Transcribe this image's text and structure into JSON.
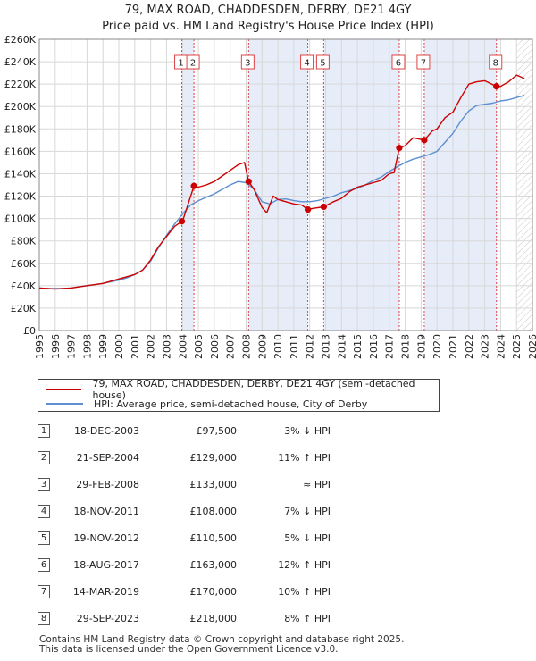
{
  "title_line1": "79, MAX ROAD, CHADDESDEN, DERBY, DE21 4GY",
  "title_line2": "Price paid vs. HM Land Registry's House Price Index (HPI)",
  "colors": {
    "property": "#cc0000",
    "hpi": "#5b8fd0",
    "shade": "#e6ecf8",
    "grid": "#d8d8d8"
  },
  "legend": {
    "property_label": "79, MAX ROAD, CHADDESDEN, DERBY, DE21 4GY (semi-detached house)",
    "hpi_label": "HPI: Average price, semi-detached house, City of Derby"
  },
  "transactions": [
    {
      "num": "1",
      "date": "18-DEC-2003",
      "price": "£97,500",
      "rel": "3% ↓ HPI"
    },
    {
      "num": "2",
      "date": "21-SEP-2004",
      "price": "£129,000",
      "rel": "11% ↑ HPI"
    },
    {
      "num": "3",
      "date": "29-FEB-2008",
      "price": "£133,000",
      "rel": "≈ HPI"
    },
    {
      "num": "4",
      "date": "18-NOV-2011",
      "price": "£108,000",
      "rel": "7% ↓ HPI"
    },
    {
      "num": "5",
      "date": "19-NOV-2012",
      "price": "£110,500",
      "rel": "5% ↓ HPI"
    },
    {
      "num": "6",
      "date": "18-AUG-2017",
      "price": "£163,000",
      "rel": "12% ↑ HPI"
    },
    {
      "num": "7",
      "date": "14-MAR-2019",
      "price": "£170,000",
      "rel": "10% ↑ HPI"
    },
    {
      "num": "8",
      "date": "29-SEP-2023",
      "price": "£218,000",
      "rel": "8% ↑ HPI"
    }
  ],
  "footer": {
    "line1": "Contains HM Land Registry data © Crown copyright and database right 2025.",
    "line2": "This data is licensed under the Open Government Licence v3.0."
  },
  "chart_data": {
    "type": "line",
    "title": "79, MAX ROAD, CHADDESDEN, DERBY, DE21 4GY",
    "subtitle": "Price paid vs. HM Land Registry's House Price Index (HPI)",
    "xlabel": "",
    "ylabel": "",
    "xlim": [
      1995,
      2026
    ],
    "ylim": [
      0,
      260000
    ],
    "x_ticks": [
      1995,
      1996,
      1997,
      1998,
      1999,
      2000,
      2001,
      2002,
      2003,
      2004,
      2005,
      2006,
      2007,
      2008,
      2009,
      2010,
      2011,
      2012,
      2013,
      2014,
      2015,
      2016,
      2017,
      2018,
      2019,
      2020,
      2021,
      2022,
      2023,
      2024,
      2025,
      2026
    ],
    "y_ticks": [
      0,
      20000,
      40000,
      60000,
      80000,
      100000,
      120000,
      140000,
      160000,
      180000,
      200000,
      220000,
      240000,
      260000
    ],
    "y_tick_labels": [
      "£0",
      "£20K",
      "£40K",
      "£60K",
      "£80K",
      "£100K",
      "£120K",
      "£140K",
      "£160K",
      "£180K",
      "£200K",
      "£220K",
      "£240K",
      "£260K"
    ],
    "forecast_start": 2025.0,
    "grid": true,
    "series": [
      {
        "name": "79, MAX ROAD, CHADDESDEN, DERBY, DE21 4GY (semi-detached house)",
        "x": [
          1995,
          1995.5,
          1996,
          1996.5,
          1997,
          1997.5,
          1998,
          1998.5,
          1999,
          1999.5,
          2000,
          2000.5,
          2001,
          2001.5,
          2002,
          2002.5,
          2003,
          2003.5,
          2003.96,
          2004.0,
          2004.72,
          2005,
          2005.5,
          2006,
          2006.5,
          2007,
          2007.5,
          2007.9,
          2008.16,
          2008.5,
          2009,
          2009.3,
          2009.7,
          2010,
          2010.5,
          2011,
          2011.5,
          2011.88,
          2012.2,
          2012.88,
          2013.5,
          2014,
          2014.5,
          2015,
          2015.5,
          2016,
          2016.5,
          2017,
          2017.3,
          2017.63,
          2018,
          2018.5,
          2019.2,
          2019.7,
          2020,
          2020.5,
          2021,
          2021.5,
          2022,
          2022.5,
          2023,
          2023.74,
          2024,
          2024.5,
          2025,
          2025.5
        ],
        "values": [
          38000,
          37500,
          37000,
          37500,
          38000,
          39000,
          40000,
          41000,
          42000,
          44000,
          46000,
          48000,
          50000,
          54000,
          63000,
          75000,
          84000,
          93000,
          97500,
          97500,
          129000,
          128000,
          130000,
          133000,
          138000,
          143000,
          148000,
          150000,
          133000,
          126000,
          110000,
          105000,
          120000,
          117000,
          115000,
          113000,
          112000,
          108000,
          109000,
          110500,
          115000,
          118000,
          124000,
          128000,
          130000,
          132000,
          134000,
          140000,
          141000,
          163000,
          165000,
          172000,
          170000,
          178000,
          180000,
          190000,
          195000,
          208000,
          220000,
          222000,
          223000,
          218000,
          218000,
          222000,
          228000,
          225000
        ]
      },
      {
        "name": "HPI: Average price, semi-detached house, City of Derby",
        "x": [
          1995,
          1995.5,
          1996,
          1996.5,
          1997,
          1997.5,
          1998,
          1998.5,
          1999,
          1999.5,
          2000,
          2000.5,
          2001,
          2001.5,
          2002,
          2002.5,
          2003,
          2003.5,
          2004,
          2004.5,
          2005,
          2005.5,
          2006,
          2006.5,
          2007,
          2007.5,
          2008,
          2008.5,
          2009,
          2009.5,
          2010,
          2010.5,
          2011,
          2011.5,
          2012,
          2012.5,
          2013,
          2013.5,
          2014,
          2014.5,
          2015,
          2015.5,
          2016,
          2016.5,
          2017,
          2017.5,
          2018,
          2018.5,
          2019,
          2019.5,
          2020,
          2020.5,
          2021,
          2021.5,
          2022,
          2022.5,
          2023,
          2023.5,
          2024,
          2024.5,
          2025,
          2025.5
        ],
        "values": [
          38000,
          37500,
          37500,
          37500,
          38000,
          39000,
          40000,
          41000,
          42000,
          43500,
          45000,
          47000,
          50000,
          54000,
          62000,
          74000,
          85000,
          95000,
          104000,
          112000,
          116000,
          119000,
          122000,
          126000,
          130000,
          133000,
          132000,
          126000,
          115000,
          113000,
          117000,
          117500,
          116000,
          115000,
          115000,
          116000,
          118000,
          120000,
          123000,
          125000,
          127000,
          130000,
          134000,
          137000,
          142000,
          146000,
          150000,
          153000,
          155000,
          157000,
          160000,
          168000,
          176000,
          187000,
          196000,
          201000,
          202000,
          203000,
          205000,
          206000,
          208000,
          210000
        ]
      }
    ],
    "sales": [
      {
        "label": "1",
        "x": 2003.96,
        "value": 97500
      },
      {
        "label": "2",
        "x": 2004.72,
        "value": 129000
      },
      {
        "label": "3",
        "x": 2008.16,
        "value": 133000
      },
      {
        "label": "4",
        "x": 2011.88,
        "value": 108000
      },
      {
        "label": "5",
        "x": 2012.88,
        "value": 110500
      },
      {
        "label": "6",
        "x": 2017.63,
        "value": 163000
      },
      {
        "label": "7",
        "x": 2019.2,
        "value": 170000
      },
      {
        "label": "8",
        "x": 2023.74,
        "value": 218000
      }
    ],
    "shaded_periods": [
      [
        2003.96,
        2004.72
      ],
      [
        2008.16,
        2011.88
      ],
      [
        2012.88,
        2017.63
      ],
      [
        2019.2,
        2023.74
      ]
    ]
  }
}
